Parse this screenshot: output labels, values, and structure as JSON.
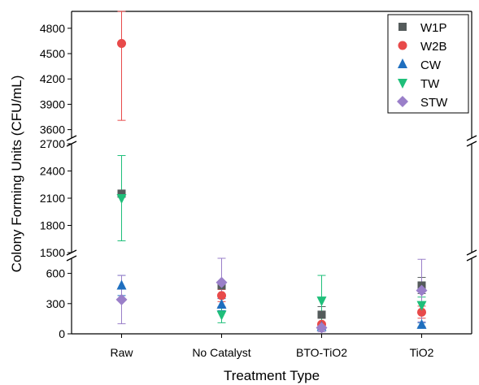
{
  "chart_data": {
    "type": "scatter",
    "xlabel": "Treatment Type",
    "ylabel": "Colony Forming Units (CFU/mL)",
    "categories": [
      "Raw",
      "No Catalyst",
      "BTO-TiO2",
      "TiO2"
    ],
    "y_axis_broken": true,
    "y_segments": [
      {
        "range": [
          0,
          750
        ],
        "ticks": [
          0,
          300,
          600
        ]
      },
      {
        "range": [
          1500,
          2700
        ],
        "ticks": [
          1500,
          1800,
          2100,
          2400,
          2700
        ]
      },
      {
        "range": [
          3500,
          5000
        ],
        "ticks": [
          3600,
          3900,
          4200,
          4500,
          4800
        ]
      }
    ],
    "legend_position": "top-right",
    "series": [
      {
        "name": "W1P",
        "color": "#545b5b",
        "marker": "square",
        "values": [
          2150,
          480,
          190,
          480
        ],
        "errors": [
          null,
          null,
          80,
          80
        ]
      },
      {
        "name": "W2B",
        "color": "#e84a4a",
        "marker": "circle",
        "values": [
          4620,
          380,
          95,
          215
        ],
        "errors": [
          910,
          60,
          60,
          60
        ]
      },
      {
        "name": "CW",
        "color": "#1f6fbf",
        "marker": "triangle-up",
        "values": [
          480,
          290,
          70,
          90
        ],
        "errors": [
          100,
          60,
          30,
          20
        ]
      },
      {
        "name": "TW",
        "color": "#1fbf7a",
        "marker": "triangle-down",
        "values": [
          2100,
          190,
          330,
          285
        ],
        "errors": [
          470,
          80,
          250,
          80
        ]
      },
      {
        "name": "STW",
        "color": "#9a7fc9",
        "marker": "diamond",
        "values": [
          340,
          510,
          60,
          430
        ],
        "errors": [
          240,
          240,
          40,
          310
        ]
      }
    ]
  }
}
